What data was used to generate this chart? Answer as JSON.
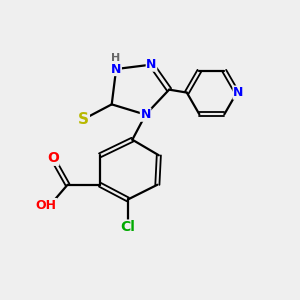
{
  "background_color": "#efefef",
  "atom_colors": {
    "N": "#0000ff",
    "S": "#b8b800",
    "O": "#ff0000",
    "Cl": "#00aa00",
    "C": "#000000",
    "H": "#666666"
  },
  "bond_color": "#000000",
  "figsize": [
    3.0,
    3.0
  ],
  "dpi": 100
}
